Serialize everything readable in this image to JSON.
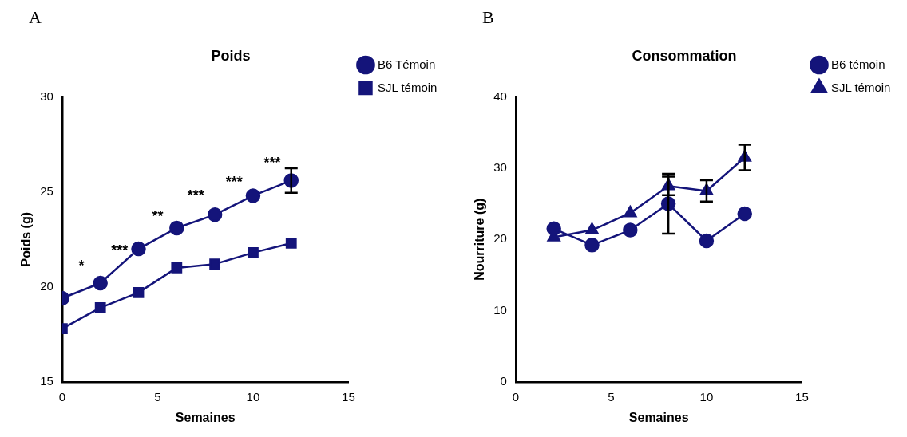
{
  "chart_data": [
    {
      "type": "line",
      "title": "Poids",
      "xlabel": "Semaines",
      "ylabel": "Poids (g)",
      "x": [
        0,
        2,
        4,
        6,
        8,
        10,
        12
      ],
      "xlim": [
        0,
        15
      ],
      "xticks": [
        0,
        5,
        10,
        15
      ],
      "ylim": [
        15,
        30
      ],
      "yticks": [
        15,
        20,
        25,
        30
      ],
      "grid": false,
      "legend": "top right",
      "line_style": "solid",
      "series": [
        {
          "name": "B6 Témoin",
          "color": "#14147a",
          "marker": "circle",
          "values": [
            19.4,
            20.2,
            22.0,
            23.1,
            23.8,
            24.8,
            25.6
          ],
          "errors": [
            null,
            null,
            null,
            null,
            null,
            null,
            0.65
          ]
        },
        {
          "name": "SJL témoin",
          "color": "#14147a",
          "marker": "square",
          "values": [
            17.8,
            18.9,
            19.7,
            21.0,
            21.2,
            21.8,
            22.3
          ]
        }
      ],
      "annotations": [
        "A",
        "*",
        "***",
        "**",
        "***",
        "***",
        "***"
      ]
    },
    {
      "type": "line",
      "title": "Consommation",
      "xlabel": "Semaines",
      "ylabel": "Nourriture (g)",
      "x": [
        2,
        4,
        6,
        8,
        10,
        12
      ],
      "xlim": [
        0,
        15
      ],
      "xticks": [
        0,
        5,
        10,
        15
      ],
      "ylim": [
        0,
        40
      ],
      "yticks": [
        0,
        10,
        20,
        30,
        40
      ],
      "grid": false,
      "legend": "top right",
      "line_style": "solid",
      "series": [
        {
          "name": "B6 témoin",
          "color": "#14147a",
          "marker": "circle",
          "values": [
            21.5,
            19.2,
            21.3,
            25.0,
            19.8,
            23.6
          ],
          "errors": [
            null,
            null,
            null,
            4.2,
            null,
            null
          ]
        },
        {
          "name": "SJL témoin",
          "color": "#14147a",
          "marker": "triangle",
          "values": [
            20.3,
            21.3,
            23.7,
            27.5,
            26.8,
            31.5
          ],
          "errors": [
            null,
            null,
            null,
            1.3,
            1.5,
            1.8
          ]
        }
      ],
      "annotations": [
        "B"
      ]
    }
  ]
}
